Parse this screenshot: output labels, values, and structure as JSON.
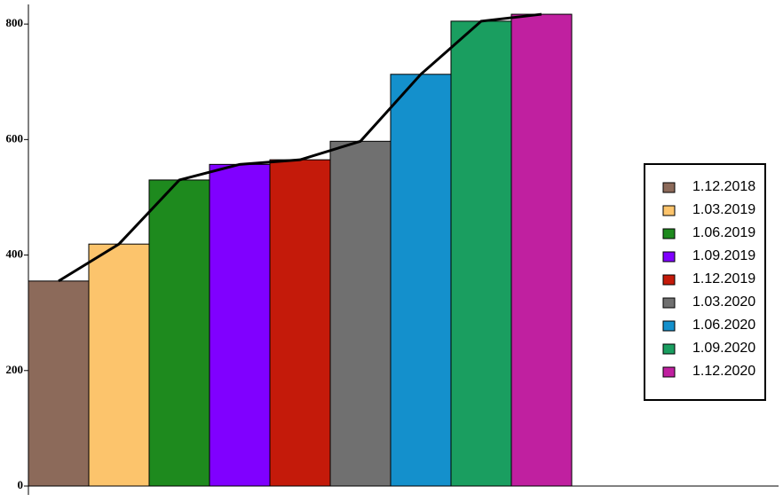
{
  "chart_data": {
    "type": "bar",
    "categories": [
      "1.12.2018",
      "1.03.2019",
      "1.06.2019",
      "1.09.2019",
      "1.12.2019",
      "1.03.2020",
      "1.06.2020",
      "1.09.2020",
      "1.12.2020"
    ],
    "values": [
      355,
      419,
      530,
      557,
      565,
      597,
      713,
      805,
      817
    ],
    "colors": [
      "#8c6a5a",
      "#fcc46c",
      "#1e8a1e",
      "#8000ff",
      "#c41a0a",
      "#707070",
      "#1490cc",
      "#1a9e60",
      "#c020a0"
    ],
    "line_color": "#000000",
    "ylim": [
      0,
      834
    ],
    "yticks": [
      0,
      200,
      400,
      600,
      800
    ],
    "legend": "right"
  }
}
